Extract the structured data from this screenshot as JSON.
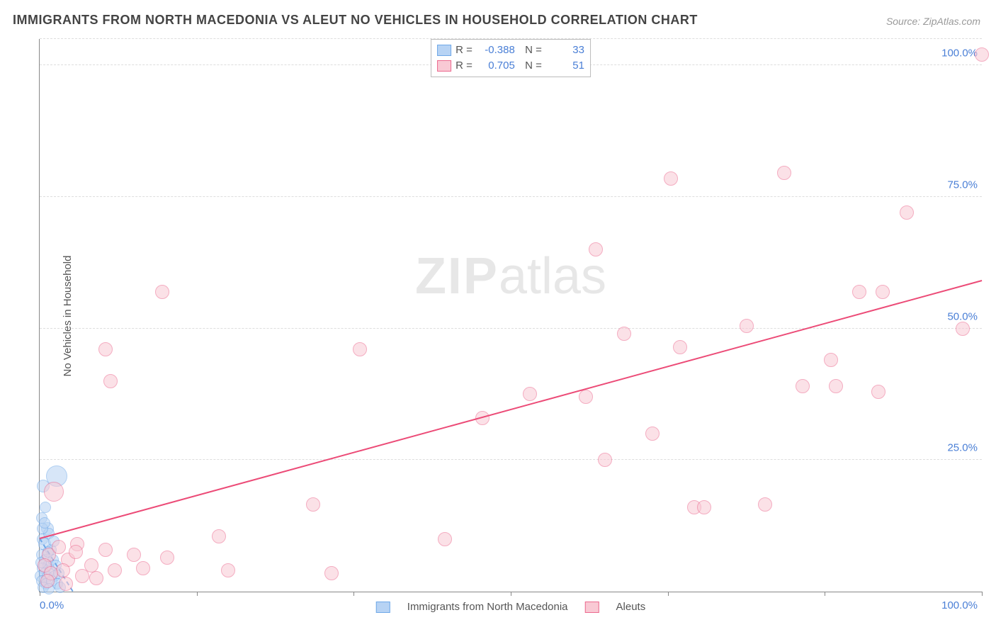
{
  "title": "IMMIGRANTS FROM NORTH MACEDONIA VS ALEUT NO VEHICLES IN HOUSEHOLD CORRELATION CHART",
  "source": "Source: ZipAtlas.com",
  "ylabel": "No Vehicles in Household",
  "watermark_bold": "ZIP",
  "watermark_rest": "atlas",
  "chart": {
    "type": "scatter",
    "xlim": [
      0,
      100
    ],
    "ylim": [
      0,
      105
    ],
    "yticks": [
      {
        "v": 25,
        "label": "25.0%"
      },
      {
        "v": 50,
        "label": "50.0%"
      },
      {
        "v": 75,
        "label": "75.0%"
      },
      {
        "v": 100,
        "label": "100.0%"
      },
      {
        "v": 105,
        "label": ""
      }
    ],
    "xtick0": "0.0%",
    "xtick100": "100.0%",
    "xtick_marks": [
      0,
      16.67,
      33.33,
      50,
      66.67,
      83.33,
      100
    ],
    "grid_color": "#dddddd",
    "background_color": "#ffffff",
    "series": [
      {
        "name": "Immigrants from North Macedonia",
        "fill": "#b7d3f4",
        "stroke": "#6fa8e8",
        "fill_opacity": 0.55,
        "R": "-0.388",
        "N": "33",
        "trend": {
          "x1": 0,
          "y1": 10,
          "x2": 3.5,
          "y2": 0,
          "color": "#6fa8e8",
          "dashed": true
        },
        "points": [
          {
            "x": 1.8,
            "y": 22,
            "r": 14
          },
          {
            "x": 0.4,
            "y": 20,
            "r": 8
          },
          {
            "x": 0.2,
            "y": 14,
            "r": 7
          },
          {
            "x": 0.6,
            "y": 16,
            "r": 7
          },
          {
            "x": 0.8,
            "y": 12,
            "r": 8
          },
          {
            "x": 0.3,
            "y": 10,
            "r": 7
          },
          {
            "x": 0.5,
            "y": 9,
            "r": 8
          },
          {
            "x": 1.0,
            "y": 11,
            "r": 7
          },
          {
            "x": 1.2,
            "y": 8,
            "r": 7
          },
          {
            "x": 0.2,
            "y": 7,
            "r": 7
          },
          {
            "x": 0.6,
            "y": 6,
            "r": 7
          },
          {
            "x": 0.9,
            "y": 5,
            "r": 7
          },
          {
            "x": 0.3,
            "y": 4.5,
            "r": 7
          },
          {
            "x": 1.4,
            "y": 6,
            "r": 7
          },
          {
            "x": 0.1,
            "y": 3,
            "r": 7
          },
          {
            "x": 0.5,
            "y": 3.5,
            "r": 7
          },
          {
            "x": 0.8,
            "y": 2.8,
            "r": 7
          },
          {
            "x": 1.1,
            "y": 4,
            "r": 7
          },
          {
            "x": 1.6,
            "y": 3,
            "r": 7
          },
          {
            "x": 0.2,
            "y": 2,
            "r": 7
          },
          {
            "x": 0.7,
            "y": 1.5,
            "r": 7
          },
          {
            "x": 1.3,
            "y": 2,
            "r": 7
          },
          {
            "x": 1.9,
            "y": 1.5,
            "r": 7
          },
          {
            "x": 0.4,
            "y": 0.8,
            "r": 7
          },
          {
            "x": 1.0,
            "y": 0.5,
            "r": 7
          },
          {
            "x": 2.2,
            "y": 0.8,
            "r": 7
          },
          {
            "x": 0.15,
            "y": 5.5,
            "r": 7
          },
          {
            "x": 0.9,
            "y": 7.5,
            "r": 7
          },
          {
            "x": 1.5,
            "y": 9.5,
            "r": 7
          },
          {
            "x": 0.3,
            "y": 12,
            "r": 7
          },
          {
            "x": 1.7,
            "y": 5,
            "r": 7
          },
          {
            "x": 2.0,
            "y": 3.5,
            "r": 7
          },
          {
            "x": 0.55,
            "y": 13,
            "r": 7
          }
        ]
      },
      {
        "name": "Aleuts",
        "fill": "#f9c9d4",
        "stroke": "#ec6a8f",
        "fill_opacity": 0.55,
        "R": "0.705",
        "N": "51",
        "trend": {
          "x1": 0,
          "y1": 10,
          "x2": 100,
          "y2": 59,
          "color": "#ec4b77",
          "dashed": false
        },
        "points": [
          {
            "x": 100,
            "y": 102,
            "r": 9
          },
          {
            "x": 67,
            "y": 78.5,
            "r": 9
          },
          {
            "x": 79,
            "y": 79.5,
            "r": 9
          },
          {
            "x": 92,
            "y": 72,
            "r": 9
          },
          {
            "x": 59,
            "y": 65,
            "r": 9
          },
          {
            "x": 13,
            "y": 57,
            "r": 9
          },
          {
            "x": 87,
            "y": 57,
            "r": 9
          },
          {
            "x": 89.5,
            "y": 57,
            "r": 9
          },
          {
            "x": 98,
            "y": 50,
            "r": 9
          },
          {
            "x": 75,
            "y": 50.5,
            "r": 9
          },
          {
            "x": 62,
            "y": 49,
            "r": 9
          },
          {
            "x": 34,
            "y": 46,
            "r": 9
          },
          {
            "x": 7,
            "y": 46,
            "r": 9
          },
          {
            "x": 68,
            "y": 46.5,
            "r": 9
          },
          {
            "x": 84,
            "y": 44,
            "r": 9
          },
          {
            "x": 7.5,
            "y": 40,
            "r": 9
          },
          {
            "x": 81,
            "y": 39,
            "r": 9
          },
          {
            "x": 84.5,
            "y": 39,
            "r": 9
          },
          {
            "x": 89,
            "y": 38,
            "r": 9
          },
          {
            "x": 52,
            "y": 37.5,
            "r": 9
          },
          {
            "x": 58,
            "y": 37,
            "r": 9
          },
          {
            "x": 47,
            "y": 33,
            "r": 9
          },
          {
            "x": 65,
            "y": 30,
            "r": 9
          },
          {
            "x": 60,
            "y": 25,
            "r": 9
          },
          {
            "x": 1.5,
            "y": 19,
            "r": 13
          },
          {
            "x": 29,
            "y": 16.5,
            "r": 9
          },
          {
            "x": 69.5,
            "y": 16,
            "r": 9
          },
          {
            "x": 70.5,
            "y": 16,
            "r": 9
          },
          {
            "x": 77,
            "y": 16.5,
            "r": 9
          },
          {
            "x": 19,
            "y": 10.5,
            "r": 9
          },
          {
            "x": 43,
            "y": 10,
            "r": 9
          },
          {
            "x": 20,
            "y": 4,
            "r": 9
          },
          {
            "x": 31,
            "y": 3.5,
            "r": 9
          },
          {
            "x": 7,
            "y": 8,
            "r": 9
          },
          {
            "x": 10,
            "y": 7,
            "r": 9
          },
          {
            "x": 13.5,
            "y": 6.5,
            "r": 9
          },
          {
            "x": 4,
            "y": 9,
            "r": 9
          },
          {
            "x": 3,
            "y": 6,
            "r": 9
          },
          {
            "x": 5.5,
            "y": 5,
            "r": 9
          },
          {
            "x": 8,
            "y": 4,
            "r": 9
          },
          {
            "x": 2.5,
            "y": 4,
            "r": 9
          },
          {
            "x": 4.5,
            "y": 3,
            "r": 9
          },
          {
            "x": 6,
            "y": 2.5,
            "r": 9
          },
          {
            "x": 1,
            "y": 7,
            "r": 9
          },
          {
            "x": 2,
            "y": 8.5,
            "r": 9
          },
          {
            "x": 0.5,
            "y": 5,
            "r": 9
          },
          {
            "x": 1.2,
            "y": 3.5,
            "r": 9
          },
          {
            "x": 0.8,
            "y": 2,
            "r": 9
          },
          {
            "x": 2.8,
            "y": 1.5,
            "r": 9
          },
          {
            "x": 3.8,
            "y": 7.5,
            "r": 9
          },
          {
            "x": 11,
            "y": 4.5,
            "r": 9
          }
        ]
      }
    ]
  },
  "legend_bottom": [
    {
      "label": "Immigrants from North Macedonia",
      "fill": "#b7d3f4",
      "stroke": "#6fa8e8"
    },
    {
      "label": "Aleuts",
      "fill": "#f9c9d4",
      "stroke": "#ec6a8f"
    }
  ]
}
